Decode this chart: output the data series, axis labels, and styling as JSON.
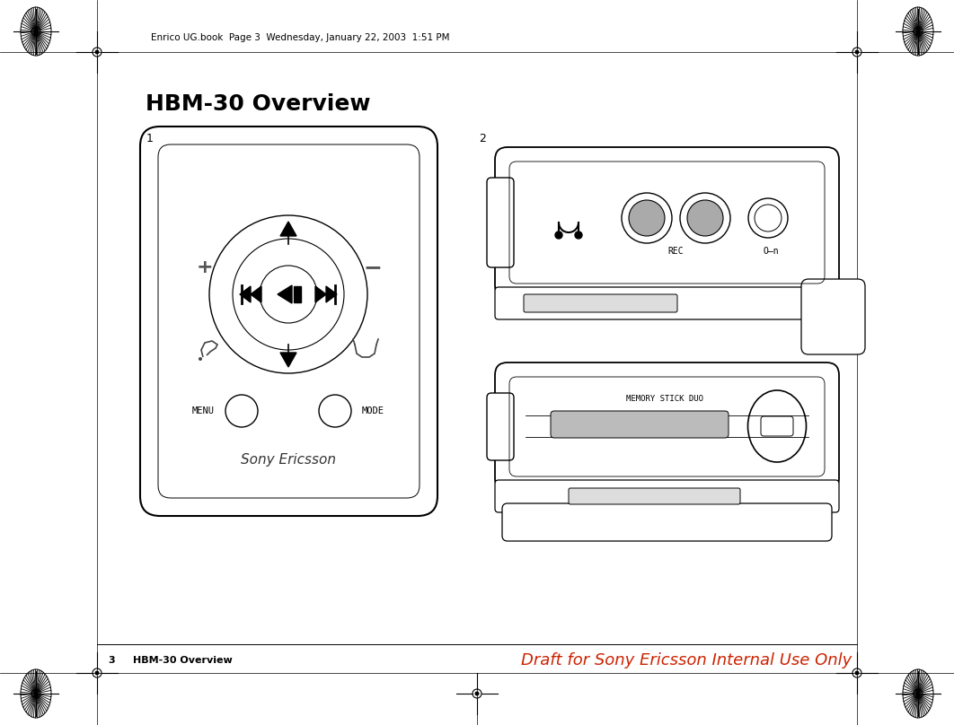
{
  "background_color": "#ffffff",
  "title": "HBM-30 Overview",
  "title_fontsize": 18,
  "header_text": "Enrico UG.book  Page 3  Wednesday, January 22, 2003  1:51 PM",
  "footer_left_num": "3",
  "footer_left_text": "HBM-30 Overview",
  "footer_right_text": "Draft for Sony Ericsson Internal Use Only",
  "footer_right_color": "#cc2200",
  "border_color": "#000000"
}
